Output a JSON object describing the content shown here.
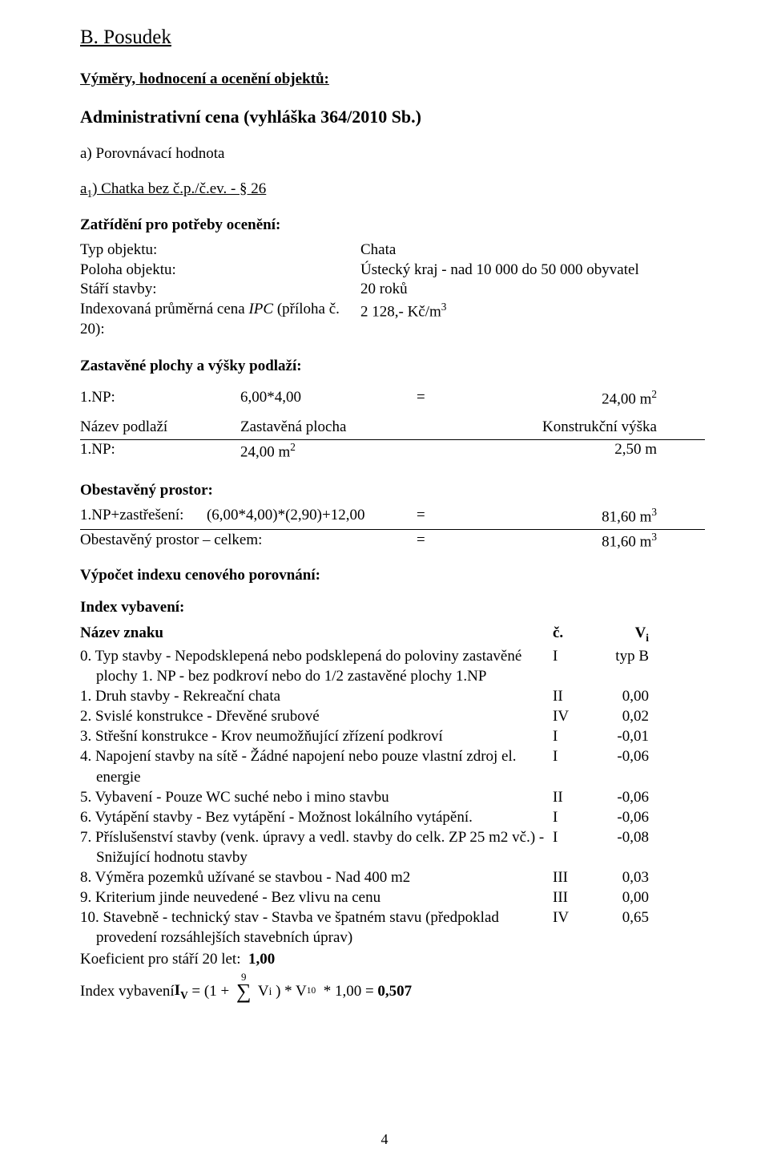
{
  "page_number": "4",
  "h1": "B. Posudek",
  "h2": "Výměry, hodnocení a ocenění objektů:",
  "h3": "Administrativní cena (vyhláška 364/2010 Sb.)",
  "sub_a": "a) Porovnávací hodnota",
  "sub_a1_pre": "a",
  "sub_a1_sub": "1",
  "sub_a1_post": ") Chatka bez č.p./č.ev. - § 26",
  "class_title": "Zatřídění pro potřeby ocenění:",
  "kv": {
    "typ_label": "Typ objektu:",
    "typ_value": "Chata",
    "poloha_label": "Poloha objektu:",
    "poloha_value": "Ústecký kraj - nad 10 000 do 50 000 obyvatel",
    "stari_label": "Stáří stavby:",
    "stari_value": "20 roků",
    "ipc_label_a": "Indexovaná průměrná cena ",
    "ipc_label_b": "IPC",
    "ipc_label_c": " (příloha č. 20):",
    "ipc_value": "2 128,- Kč/m",
    "ipc_sup": "3"
  },
  "zast_title": "Zastavěné plochy a výšky podlaží:",
  "np_row": {
    "a": "1.NP:",
    "b": "6,00*4,00",
    "eq": "=",
    "r_val": "24,00 m",
    "r_sup": "2"
  },
  "tbl_head": {
    "c1": "Název podlaží",
    "c2": "Zastavěná plocha",
    "c3": "Konstrukční výška"
  },
  "tbl_row1": {
    "c1": "1.NP:",
    "c2_val": "24,00 m",
    "c2_sup": "2",
    "c3": "2,50 m"
  },
  "obes_title": "Obestavěný prostor:",
  "obes_r1": {
    "a": "1.NP+zastřešení:      (6,00*4,00)*(2,90)+12,00",
    "eq": "=",
    "r_val": "81,60 m",
    "r_sup": "3"
  },
  "obes_r2": {
    "a": "Obestavěný prostor – celkem:",
    "eq": "=",
    "r_val": "81,60 m",
    "r_sup": "3"
  },
  "vypocet_title": "Výpočet indexu cenového porovnání:",
  "index_title": "Index vybavení:",
  "list_head": {
    "name": "Název znaku",
    "c": "č.",
    "v_pre": "V",
    "v_sub": "i"
  },
  "items": [
    {
      "t1": "0. Typ stavby - Nepodsklepená nebo podsklepená do poloviny zastavěné",
      "t2": "plochy 1. NP - bez podkroví  nebo do 1/2 zastavěné plochy 1.NP",
      "c": "I",
      "v": "typ B"
    },
    {
      "t1": "1. Druh stavby -  Rekreační chata",
      "c": "II",
      "v": "0,00"
    },
    {
      "t1": "2. Svislé konstrukce -  Dřevěné srubové",
      "c": "IV",
      "v": "0,02"
    },
    {
      "t1": "3. Střešní konstrukce -  Krov neumožňující zřízení podkroví",
      "c": "I",
      "v": "-0,01"
    },
    {
      "t1": "4. Napojení stavby na sítě -  Žádné napojení nebo pouze vlastní zdroj el.",
      "t2": "energie",
      "c": "I",
      "v": "-0,06"
    },
    {
      "t1": "5. Vybavení -  Pouze WC suché nebo i mino stavbu",
      "c": "II",
      "v": "-0,06"
    },
    {
      "t1": "6. Vytápění stavby -  Bez vytápění - Možnost lokálního vytápění.",
      "c": "I",
      "v": "-0,06"
    },
    {
      "t1": "7. Příslušenství stavby (venk. úpravy a vedl. stavby do celk. ZP 25 m2 vč.) -",
      "t2": "Snižující hodnotu stavby",
      "c": "I",
      "v": "-0,08"
    },
    {
      "t1": "8. Výměra pozemků užívané se stavbou -  Nad 400 m2",
      "c": "III",
      "v": "0,03"
    },
    {
      "t1": "9. Kriterium jinde neuvedené  -  Bez vlivu na cenu",
      "c": "III",
      "v": "0,00"
    },
    {
      "t1": "10. Stavebně - technický stav -  Stavba ve špatném stavu (předpoklad",
      "t2": "provedení rozsáhlejších stavebních úprav)",
      "c": "IV",
      "v": "0,65"
    }
  ],
  "koef_line": {
    "pre": "Koeficient pro stáří 20 let:  ",
    "val": "1,00"
  },
  "formula": {
    "pre": "Index vybavení ",
    "iv_b": "I",
    "iv_sub": "V",
    "mid1": " = (1 + ",
    "sigma_top": "9",
    "mid2": " V",
    "vi_sub": "i",
    "mid3": " ) * V",
    "v10_sub": "10",
    "mid4": "  * 1,00 = ",
    "result": "0,507"
  }
}
